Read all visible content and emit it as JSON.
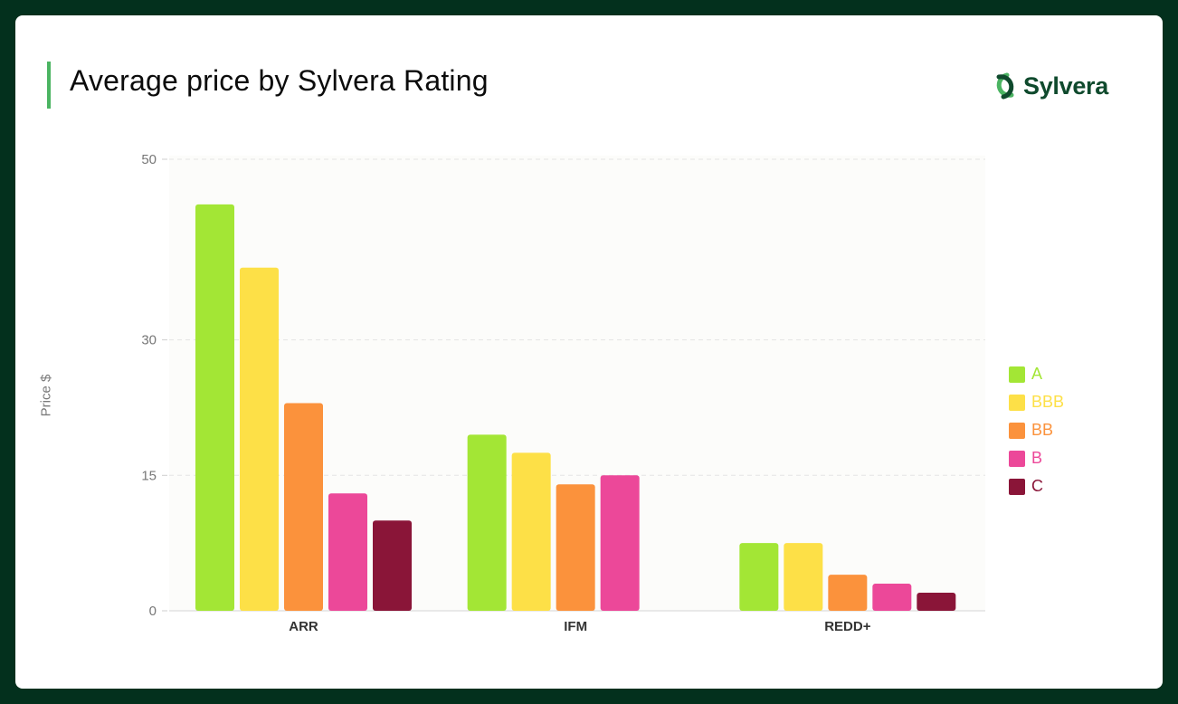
{
  "header": {
    "title": "Average price by Sylvera Rating",
    "logo_text": "Sylvera"
  },
  "colors": {
    "background": "#03301d",
    "card": "#ffffff",
    "accent_bar": "#4bb462",
    "logo_text": "#0f4a2d",
    "plot_bg": "#fcfcfa"
  },
  "chart_data": {
    "type": "bar",
    "title": "Average price by Sylvera Rating",
    "xlabel": "",
    "ylabel": "Price $",
    "ylim": [
      0,
      50
    ],
    "yticks": [
      0,
      15,
      30,
      50
    ],
    "grid": true,
    "legend_position": "right",
    "categories": [
      "ARR",
      "IFM",
      "REDD+"
    ],
    "series": [
      {
        "name": "A",
        "color": "#a3e635",
        "values": [
          45,
          19.5,
          7.5
        ]
      },
      {
        "name": "BBB",
        "color": "#fde047",
        "values": [
          38,
          17.5,
          7.5
        ]
      },
      {
        "name": "BB",
        "color": "#fb923c",
        "values": [
          23,
          14,
          4
        ]
      },
      {
        "name": "B",
        "color": "#ec4899",
        "values": [
          13,
          15,
          3
        ]
      },
      {
        "name": "C",
        "color": "#8a1538",
        "values": [
          10,
          null,
          2
        ]
      }
    ]
  }
}
